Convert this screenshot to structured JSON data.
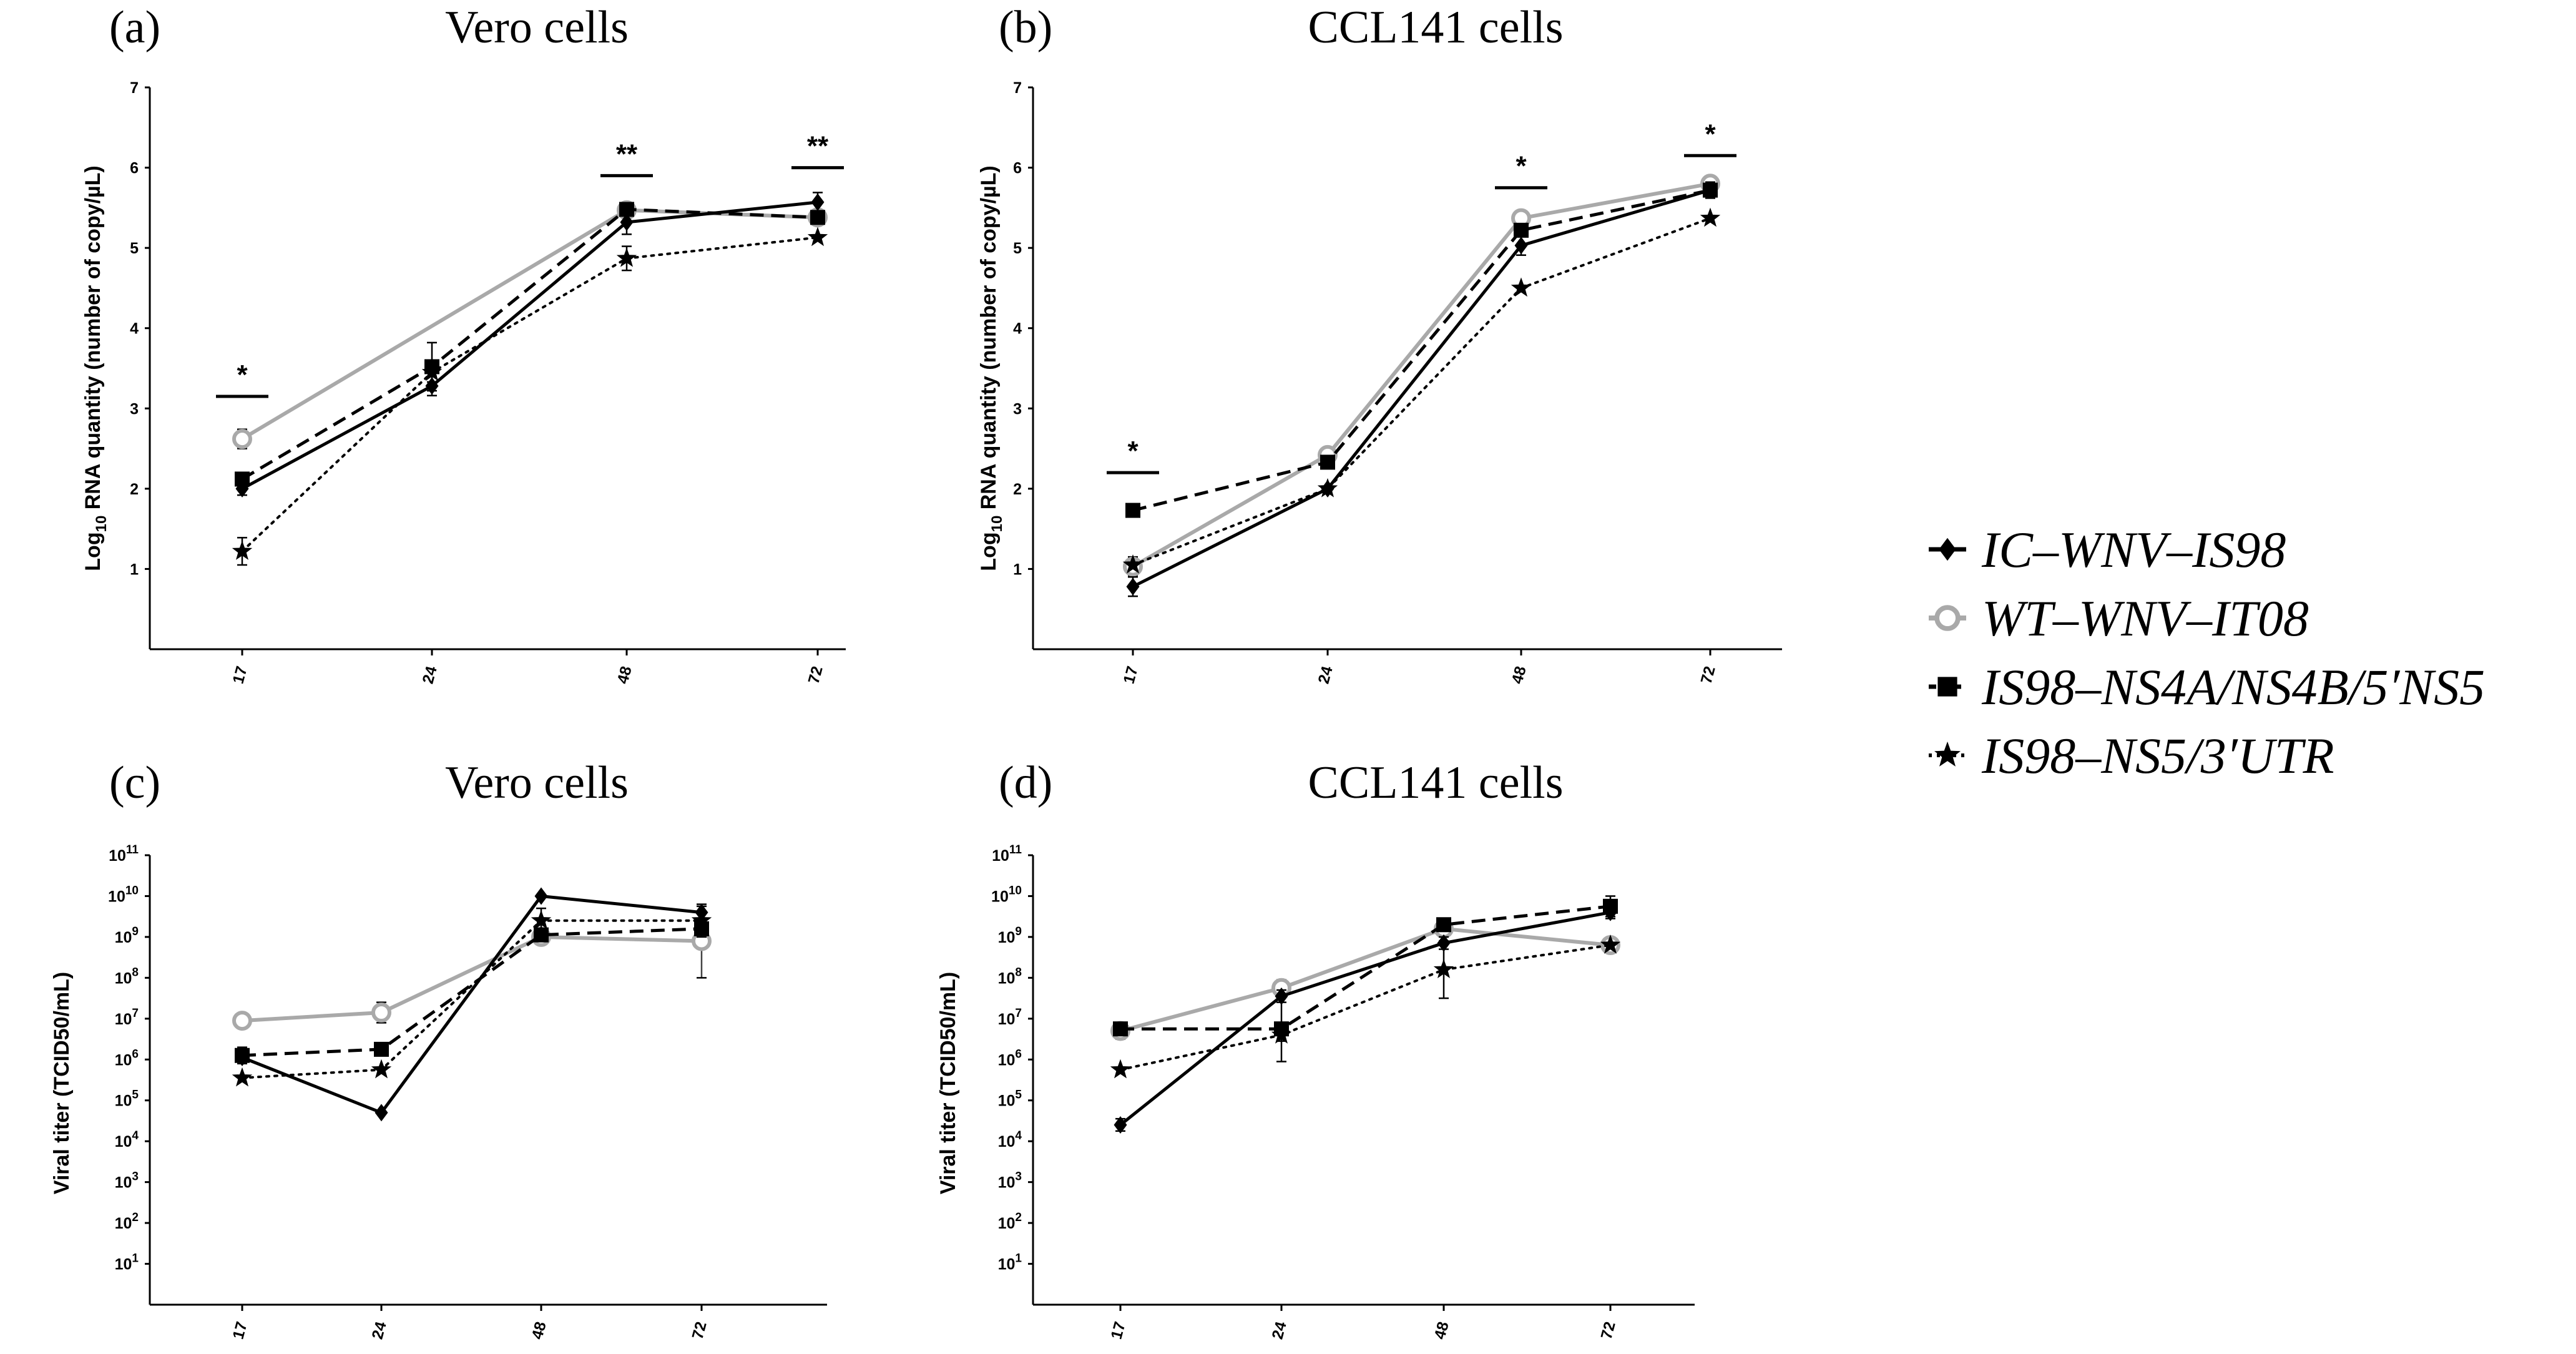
{
  "legend": [
    {
      "key": "ic",
      "label": "IC–WNV–IS98"
    },
    {
      "key": "wt",
      "label": "WT–WNV–IT08"
    },
    {
      "key": "ns4",
      "label": "IS98–NS4A/NS4B/5′NS5"
    },
    {
      "key": "ns5",
      "label": "IS98–NS5/3′UTR"
    }
  ],
  "colors": {
    "ic": "#000000",
    "wt": "#aaaaaa",
    "ns4": "#000000",
    "ns5": "#000000"
  },
  "chart_data": [
    {
      "id": "a",
      "panel_label": "(a)",
      "title": "Vero cells",
      "type": "line",
      "yscale": "linear",
      "ylabel_prefix": "Log",
      "ylabel_sub": "10",
      "ylabel_main": " RNA quantity (number of copy/µL)",
      "xlabel": "",
      "ylim": [
        0,
        7
      ],
      "x_categories": [
        "17",
        "24",
        "48",
        "72"
      ],
      "yticks": [
        {
          "value": 1,
          "label": "1"
        },
        {
          "value": 2,
          "label": "2"
        },
        {
          "value": 3,
          "label": "3"
        },
        {
          "value": 4,
          "label": "4"
        },
        {
          "value": 5,
          "label": "5"
        },
        {
          "value": 6,
          "label": "6"
        },
        {
          "value": 7,
          "label": "7"
        }
      ],
      "series": [
        {
          "key": "wt",
          "name": "WT–WNV–IT08",
          "values": [
            2.62,
            null,
            5.47,
            5.38
          ],
          "errors": [
            0.12,
            0,
            0.05,
            0.05
          ]
        },
        {
          "key": "ns4",
          "name": "IS98–NS4A/NS4B/5′NS5",
          "values": [
            2.12,
            3.52,
            5.48,
            5.38
          ],
          "errors": [
            0.08,
            0.3,
            0.05,
            0.08
          ]
        },
        {
          "key": "ic",
          "name": "IC–WNV–IS98",
          "values": [
            2.0,
            3.28,
            5.32,
            5.57
          ],
          "errors": [
            0.08,
            0.12,
            0.15,
            0.12
          ]
        },
        {
          "key": "ns5",
          "name": "IS98–NS5/3′UTR",
          "values": [
            1.22,
            3.45,
            4.87,
            5.13
          ],
          "errors": [
            0.17,
            0.12,
            0.15,
            0
          ]
        }
      ],
      "significance": [
        {
          "x": "17",
          "y": 3.15,
          "label": "*"
        },
        {
          "x": "48",
          "y": 5.9,
          "label": "**"
        },
        {
          "x": "72",
          "y": 6.0,
          "label": "**"
        }
      ]
    },
    {
      "id": "b",
      "panel_label": "(b)",
      "title": "CCL141 cells",
      "type": "line",
      "yscale": "linear",
      "ylabel_prefix": "Log",
      "ylabel_sub": "10",
      "ylabel_main": " RNA quantity (number of copy/µL)",
      "xlabel": "",
      "ylim": [
        0,
        7
      ],
      "x_categories": [
        "17",
        "24",
        "48",
        "72"
      ],
      "yticks": [
        {
          "value": 1,
          "label": "1"
        },
        {
          "value": 2,
          "label": "2"
        },
        {
          "value": 3,
          "label": "3"
        },
        {
          "value": 4,
          "label": "4"
        },
        {
          "value": 5,
          "label": "5"
        },
        {
          "value": 6,
          "label": "6"
        },
        {
          "value": 7,
          "label": "7"
        }
      ],
      "series": [
        {
          "key": "wt",
          "name": "WT–WNV–IT08",
          "values": [
            1.03,
            2.42,
            5.37,
            5.8
          ],
          "errors": [
            0.12,
            0,
            0.05,
            0.05
          ]
        },
        {
          "key": "ns4",
          "name": "IS98–NS4A/NS4B/5′NS5",
          "values": [
            1.73,
            2.33,
            5.22,
            5.72
          ],
          "errors": [
            0.08,
            0,
            0.08,
            0.08
          ]
        },
        {
          "key": "ic",
          "name": "IC–WNV–IS98",
          "values": [
            0.78,
            2.0,
            5.03,
            5.72
          ],
          "errors": [
            0.12,
            0,
            0.12,
            0.1
          ]
        },
        {
          "key": "ns5",
          "name": "IS98–NS5/3′UTR",
          "values": [
            1.05,
            2.0,
            4.5,
            5.37
          ],
          "errors": [
            0,
            0,
            0,
            0
          ]
        }
      ],
      "significance": [
        {
          "x": "17",
          "y": 2.2,
          "label": "*"
        },
        {
          "x": "48",
          "y": 5.75,
          "label": "*"
        },
        {
          "x": "72",
          "y": 6.15,
          "label": "*"
        }
      ]
    },
    {
      "id": "c",
      "panel_label": "(c)",
      "title": "Vero cells",
      "type": "line",
      "yscale": "log10",
      "ylabel_main": "Viral titer (TCID50/mL)",
      "xlabel": "",
      "ylim": [
        0,
        11
      ],
      "x_categories": [
        "17",
        "24",
        "48",
        "72"
      ],
      "yticks": [
        {
          "value": 1,
          "label": "10",
          "exp": "1"
        },
        {
          "value": 2,
          "label": "10",
          "exp": "2"
        },
        {
          "value": 3,
          "label": "10",
          "exp": "3"
        },
        {
          "value": 4,
          "label": "10",
          "exp": "4"
        },
        {
          "value": 5,
          "label": "10",
          "exp": "5"
        },
        {
          "value": 6,
          "label": "10",
          "exp": "6"
        },
        {
          "value": 7,
          "label": "10",
          "exp": "7"
        },
        {
          "value": 8,
          "label": "10",
          "exp": "8"
        },
        {
          "value": 9,
          "label": "10",
          "exp": "9"
        },
        {
          "value": 10,
          "label": "10",
          "exp": "10"
        },
        {
          "value": 11,
          "label": "10",
          "exp": "11"
        }
      ],
      "series": [
        {
          "key": "wt",
          "name": "WT–WNV–IT08",
          "values": [
            6.95,
            7.15,
            9.0,
            8.9
          ],
          "errors": [
            0.1,
            0.25,
            0.1,
            0.9
          ]
        },
        {
          "key": "ns4",
          "name": "IS98–NS4A/NS4B/5′NS5",
          "values": [
            6.1,
            6.25,
            9.05,
            9.2
          ],
          "errors": [
            0.2,
            0.1,
            0.15,
            0.2
          ]
        },
        {
          "key": "ic",
          "name": "IC–WNV–IS98",
          "values": [
            6.05,
            4.7,
            10.0,
            9.6
          ],
          "errors": [
            0,
            0,
            0,
            0.15
          ]
        },
        {
          "key": "ns5",
          "name": "IS98–NS5/3′UTR",
          "values": [
            5.55,
            5.75,
            9.4,
            9.4
          ],
          "errors": [
            0,
            0,
            0.3,
            0
          ]
        }
      ],
      "significance": []
    },
    {
      "id": "d",
      "panel_label": "(d)",
      "title": "CCL141 cells",
      "type": "line",
      "yscale": "log10",
      "ylabel_main": "Viral titer (TCID50/mL)",
      "xlabel": "",
      "ylim": [
        0,
        11
      ],
      "x_categories": [
        "17",
        "24",
        "48",
        "72"
      ],
      "yticks": [
        {
          "value": 1,
          "label": "10",
          "exp": "1"
        },
        {
          "value": 2,
          "label": "10",
          "exp": "2"
        },
        {
          "value": 3,
          "label": "10",
          "exp": "3"
        },
        {
          "value": 4,
          "label": "10",
          "exp": "4"
        },
        {
          "value": 5,
          "label": "10",
          "exp": "5"
        },
        {
          "value": 6,
          "label": "10",
          "exp": "6"
        },
        {
          "value": 7,
          "label": "10",
          "exp": "7"
        },
        {
          "value": 8,
          "label": "10",
          "exp": "8"
        },
        {
          "value": 9,
          "label": "10",
          "exp": "9"
        },
        {
          "value": 10,
          "label": "10",
          "exp": "10"
        },
        {
          "value": 11,
          "label": "10",
          "exp": "11"
        }
      ],
      "series": [
        {
          "key": "wt",
          "name": "WT–WNV–IT08",
          "values": [
            6.7,
            7.75,
            9.2,
            8.8
          ],
          "errors": [
            0.2,
            0.2,
            0.15,
            0.1
          ]
        },
        {
          "key": "ns4",
          "name": "IS98–NS4A/NS4B/5′NS5",
          "values": [
            6.75,
            6.75,
            9.3,
            9.75
          ],
          "errors": [
            0.1,
            0.8,
            0.15,
            0.25
          ]
        },
        {
          "key": "ic",
          "name": "IC–WNV–IS98",
          "values": [
            4.4,
            7.55,
            8.85,
            9.6
          ],
          "errors": [
            0.15,
            0.15,
            0.15,
            0.15
          ]
        },
        {
          "key": "ns5",
          "name": "IS98–NS5/3′UTR",
          "values": [
            5.75,
            6.6,
            8.2,
            8.8
          ],
          "errors": [
            0,
            0.15,
            0.7,
            0
          ]
        }
      ],
      "significance": []
    }
  ]
}
